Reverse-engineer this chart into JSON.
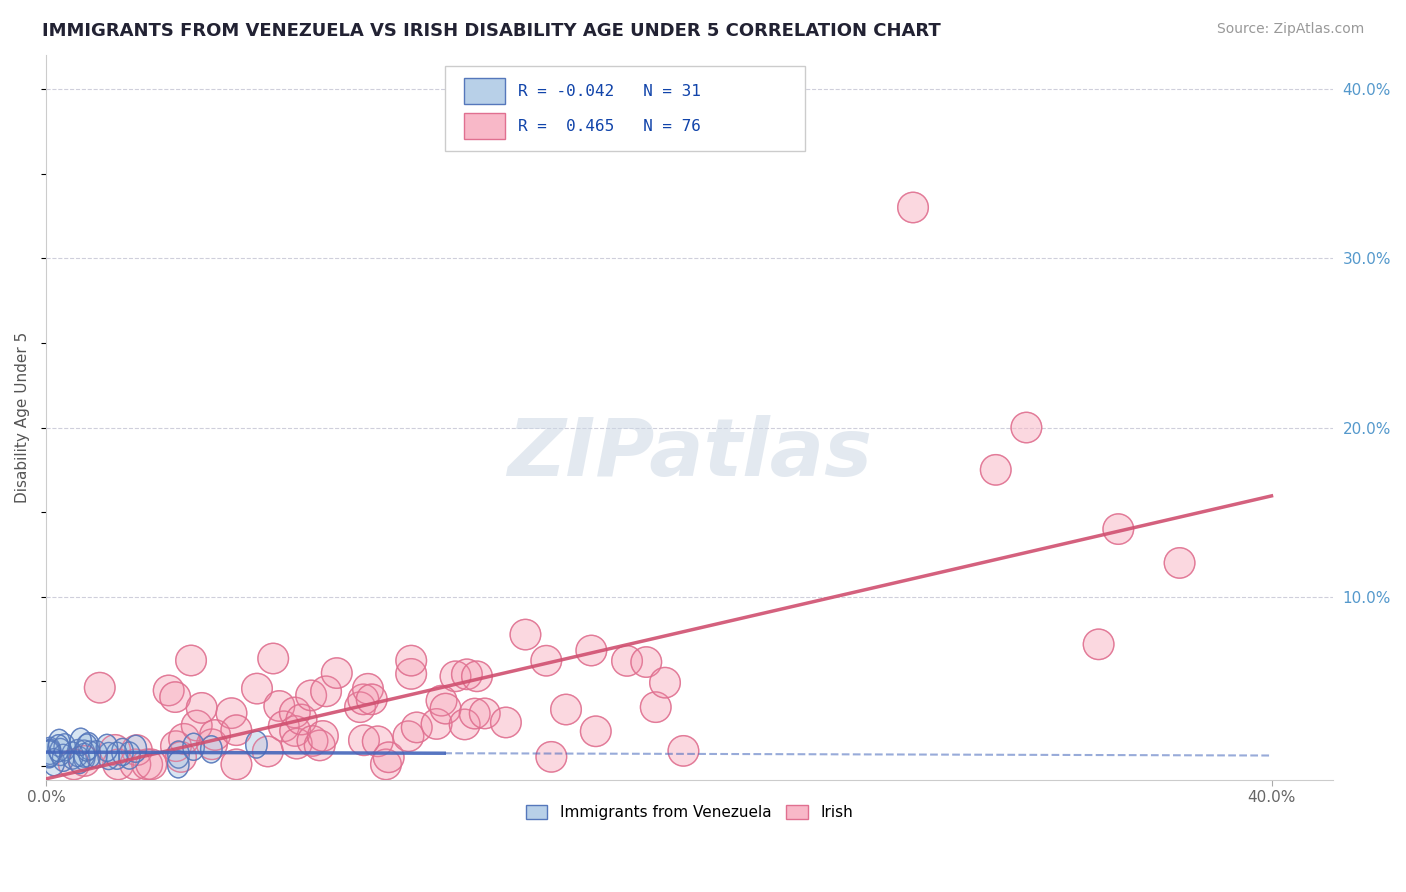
{
  "title": "IMMIGRANTS FROM VENEZUELA VS IRISH DISABILITY AGE UNDER 5 CORRELATION CHART",
  "source_text": "Source: ZipAtlas.com",
  "ylabel": "Disability Age Under 5",
  "legend_labels": [
    "Immigrants from Venezuela",
    "Irish"
  ],
  "blue_R": -0.042,
  "blue_N": 31,
  "pink_R": 0.465,
  "pink_N": 76,
  "xlim": [
    0.0,
    0.42
  ],
  "ylim": [
    -0.008,
    0.42
  ],
  "blue_color": "#b8d0e8",
  "blue_edge_color": "#5577bb",
  "pink_color": "#f8b8c8",
  "pink_edge_color": "#e07090",
  "pink_line_color": "#d05070",
  "blue_line_color": "#4466bb",
  "watermark": "ZIPatlas",
  "background_color": "#ffffff",
  "title_fontsize": 13,
  "right_tick_color": "#5599cc"
}
